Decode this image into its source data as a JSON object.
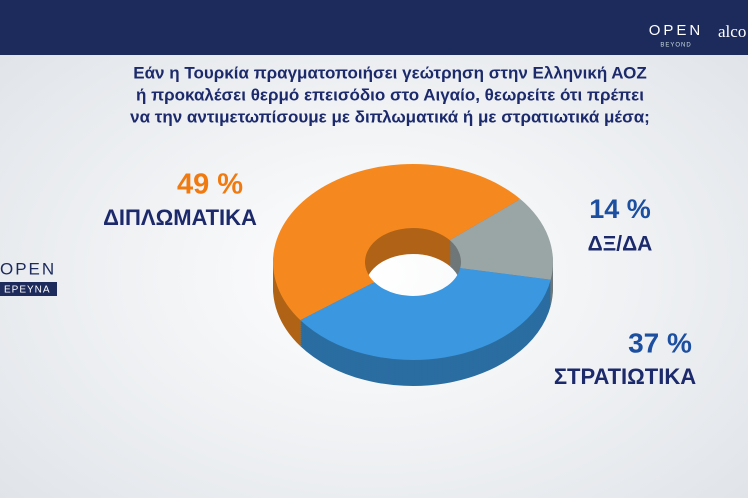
{
  "chart_data": {
    "type": "donut",
    "title": [
      "Εάν η Τουρκία πραγματοποιήσει γεώτρηση στην Ελληνική ΑΟΖ",
      "ή προκαλέσει θερμό επεισόδιο στο Αιγαίο, θεωρείτε ότι πρέπει",
      "να την αντιμετωπίσουμε με διπλωματικά ή με στρατιωτικά μέσα;"
    ],
    "categories": [
      "ΔΙΠΛΩΜΑΤΙΚΑ",
      "ΔΞ/ΔΑ",
      "ΣΤΡΑΤΙΩΤΙΚΑ"
    ],
    "values": [
      49,
      14,
      37
    ],
    "value_labels": [
      "49 %",
      "14 %",
      "37 %"
    ],
    "colors": [
      "#f5891f",
      "#9aa5a6",
      "#3b97e0"
    ]
  },
  "branding": {
    "top_logo": "OPEN",
    "top_logo_sub": "BEYOND",
    "top_partner": "alco",
    "side_logo": "OPEN",
    "side_logo_sub": "ΕΡΕΥΝΑ"
  }
}
